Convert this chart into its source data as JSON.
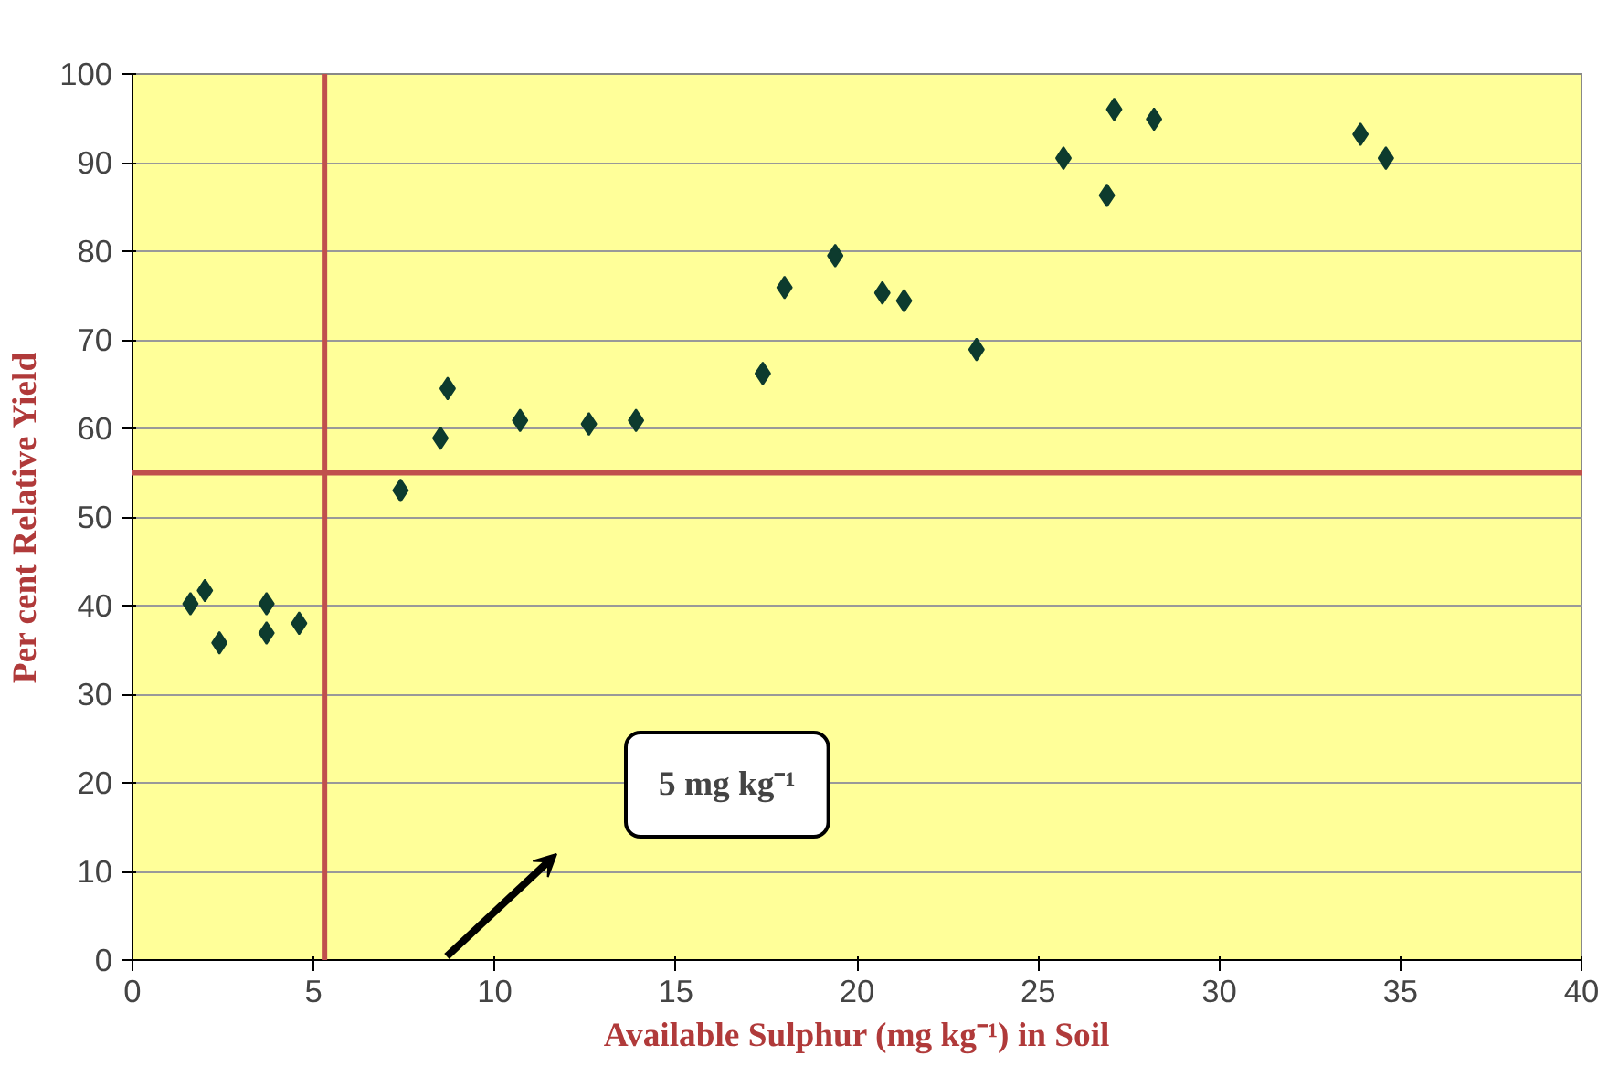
{
  "chart_data": {
    "type": "scatter",
    "xlabel": "Available Sulphur (mg kg⁻¹) in Soil",
    "ylabel": "Per cent Relative Yield",
    "x": [
      1.6,
      2.0,
      2.4,
      3.7,
      3.7,
      4.6,
      7.4,
      8.5,
      8.7,
      10.7,
      12.6,
      13.9,
      17.4,
      18.0,
      19.4,
      20.7,
      21.3,
      23.3,
      25.7,
      26.9,
      27.1,
      28.2,
      33.9,
      34.6
    ],
    "series": [
      {
        "color": "#0d3b2e",
        "values": [
          40.2,
          41.7,
          35.8,
          40.2,
          36.9,
          38.0,
          53.0,
          58.9,
          64.5,
          60.9,
          60.5,
          60.9,
          66.2,
          75.9,
          79.5,
          75.3,
          74.4,
          68.9,
          90.5,
          86.3,
          96.0,
          94.9,
          93.2,
          90.5
        ]
      }
    ],
    "xlim": [
      0,
      40
    ],
    "ylim": [
      0,
      100
    ],
    "xticks": [
      0,
      5,
      10,
      15,
      20,
      25,
      30,
      35,
      40
    ],
    "yticks": [
      0,
      10,
      20,
      30,
      40,
      50,
      60,
      70,
      80,
      90,
      100
    ],
    "grid": "y",
    "marker": "diamond",
    "ref_lines": [
      {
        "axis": "x",
        "value": 5.3,
        "color": "#c0504d"
      },
      {
        "axis": "y",
        "value": 55,
        "color": "#c0504d"
      }
    ],
    "annotations": [
      "5 mg kg⁻¹"
    ]
  }
}
